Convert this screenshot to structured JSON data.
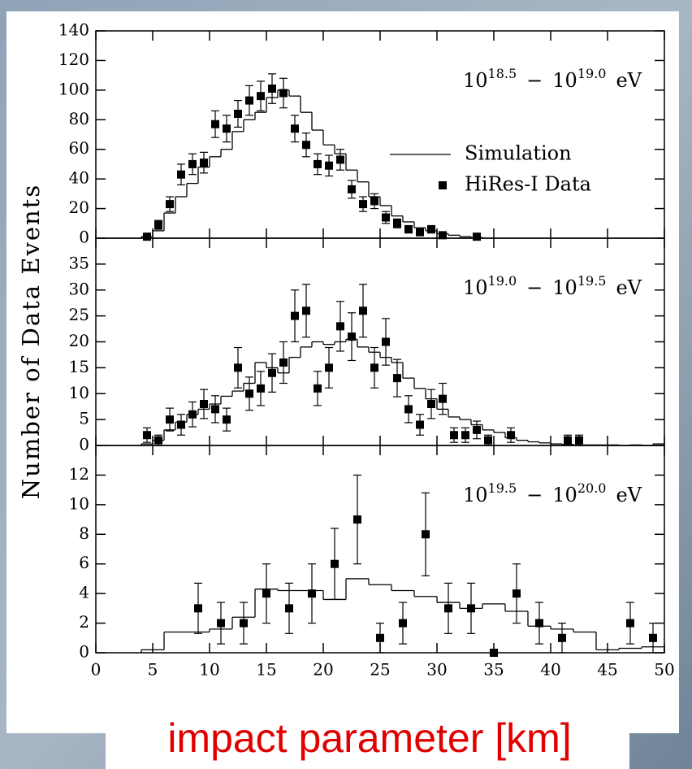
{
  "y_label": "Number of Data Events",
  "x_label": "impact parameter [km]",
  "chart_data": [
    {
      "type": "histogram",
      "annotation": {
        "base": "10",
        "exp": "18.5",
        "sep": "−",
        "base2": "10",
        "exp2": "19.0",
        "unit": "eV"
      },
      "xlim": [
        0,
        50
      ],
      "ylim": [
        0,
        140
      ],
      "yticks": [
        0,
        20,
        40,
        60,
        80,
        100,
        120,
        140
      ],
      "series": [
        {
          "name": "Simulation",
          "color": "#000000",
          "bins": [
            4,
            5,
            6,
            7,
            8,
            9,
            10,
            11,
            12,
            13,
            14,
            15,
            16,
            17,
            18,
            19,
            20,
            21,
            22,
            23,
            24,
            25,
            26,
            27,
            28,
            29,
            30,
            31,
            32,
            33,
            34
          ],
          "values": [
            1,
            5,
            17,
            28,
            37,
            48,
            55,
            60,
            72,
            80,
            85,
            95,
            100,
            96,
            85,
            73,
            63,
            57,
            46,
            38,
            28,
            22,
            15,
            11,
            7,
            5,
            3,
            2,
            1,
            0.5
          ]
        },
        {
          "name": "HiRes-I Data",
          "color": "#000000",
          "x": [
            4.5,
            5.5,
            6.5,
            7.5,
            8.5,
            9.5,
            10.5,
            11.5,
            12.5,
            13.5,
            14.5,
            15.5,
            16.5,
            17.5,
            18.5,
            19.5,
            20.5,
            21.5,
            22.5,
            23.5,
            24.5,
            25.5,
            26.5,
            27.5,
            28.5,
            29.5,
            30.5,
            33.5
          ],
          "values": [
            1,
            9,
            23,
            43,
            50,
            51,
            77,
            74,
            84,
            93,
            96,
            101,
            98,
            74,
            63,
            50,
            49,
            53,
            33,
            23,
            25,
            14,
            10,
            6,
            4,
            6,
            2,
            1
          ],
          "errors": [
            1,
            3,
            5,
            7,
            7,
            7,
            9,
            9,
            9,
            10,
            10,
            10,
            10,
            9,
            8,
            7,
            7,
            7,
            6,
            5,
            5,
            4,
            3,
            2.5,
            2,
            2.5,
            1.4,
            1
          ]
        }
      ]
    },
    {
      "type": "histogram",
      "annotation": {
        "base": "10",
        "exp": "19.0",
        "sep": "−",
        "base2": "10",
        "exp2": "19.5",
        "unit": "eV"
      },
      "xlim": [
        0,
        50
      ],
      "ylim": [
        0,
        40
      ],
      "yticks": [
        0,
        5,
        10,
        15,
        20,
        25,
        30,
        35
      ],
      "series": [
        {
          "color": "#000000",
          "bins": [
            4,
            5,
            6,
            7,
            8,
            9,
            10,
            11,
            12,
            13,
            14,
            15,
            16,
            17,
            18,
            19,
            20,
            21,
            22,
            23,
            24,
            25,
            26,
            27,
            28,
            29,
            30,
            31,
            32,
            33,
            34,
            35,
            36,
            37,
            38,
            39,
            40,
            41,
            42,
            43,
            44,
            45,
            46,
            47,
            48,
            49,
            50
          ],
          "values": [
            0.3,
            1,
            3,
            4.5,
            6,
            7,
            8,
            9.5,
            10.5,
            12,
            16,
            15,
            14,
            17,
            19,
            20,
            19.5,
            20,
            20.5,
            19,
            18,
            17,
            16,
            13,
            11,
            9,
            7,
            5.5,
            5,
            4,
            3,
            2.5,
            1.5,
            1,
            0.7,
            0.5,
            0.3,
            0.2,
            0.1,
            0.1,
            0.1,
            0.1,
            0,
            0.1,
            0,
            0.3
          ]
        },
        {
          "color": "#000000",
          "x": [
            4.5,
            5.5,
            6.5,
            7.5,
            8.5,
            9.5,
            10.5,
            11.5,
            12.5,
            13.5,
            14.5,
            15.5,
            16.5,
            17.5,
            18.5,
            19.5,
            20.5,
            21.5,
            22.5,
            23.5,
            24.5,
            25.5,
            26.5,
            27.5,
            28.5,
            29.5,
            30.5,
            31.5,
            32.5,
            33.5,
            34.5,
            36.5,
            41.5,
            42.5
          ],
          "values": [
            2,
            1,
            5,
            4,
            6,
            8,
            7,
            5,
            15,
            10,
            11,
            14,
            16,
            25,
            26,
            11,
            15,
            23,
            21,
            26,
            15,
            20,
            13,
            7,
            4,
            8,
            9,
            2,
            2,
            3,
            1,
            2,
            1,
            1
          ],
          "errors": [
            1.4,
            1,
            2.2,
            2,
            2.4,
            2.8,
            2.6,
            2.2,
            3.9,
            3.2,
            3.3,
            3.7,
            4,
            5,
            5.1,
            3.3,
            3.9,
            4.8,
            4.6,
            5.1,
            3.9,
            4.5,
            3.6,
            2.6,
            2,
            2.8,
            3,
            1.4,
            1.4,
            1.7,
            1,
            1.4,
            1,
            1
          ]
        }
      ]
    },
    {
      "type": "histogram",
      "annotation": {
        "base": "10",
        "exp": "19.5",
        "sep": "−",
        "base2": "10",
        "exp2": "20.0",
        "unit": "eV"
      },
      "xlim": [
        0,
        50
      ],
      "xticks": [
        0,
        5,
        10,
        15,
        20,
        25,
        30,
        35,
        40,
        45,
        50
      ],
      "ylim": [
        0,
        14
      ],
      "yticks": [
        0,
        2,
        4,
        6,
        8,
        10,
        12
      ],
      "series": [
        {
          "color": "#000000",
          "bins": [
            4,
            6,
            8,
            10,
            12,
            14,
            16,
            18,
            20,
            22,
            24,
            26,
            28,
            30,
            32,
            34,
            36,
            38,
            40,
            42,
            44,
            46,
            48,
            50
          ],
          "values": [
            0.2,
            1.4,
            1.4,
            1.6,
            2.4,
            4.3,
            4.2,
            4.2,
            3.6,
            5.0,
            4.6,
            4.2,
            3.8,
            3.4,
            3.0,
            3.3,
            2.8,
            1.8,
            1.6,
            1.4,
            0.2,
            0.3,
            0.4
          ]
        },
        {
          "color": "#000000",
          "x": [
            9,
            11,
            13,
            15,
            17,
            19,
            21,
            23,
            25,
            27,
            29,
            31,
            33,
            35,
            37,
            39,
            41,
            47,
            49
          ],
          "values": [
            3,
            2,
            2,
            4,
            3,
            4,
            6,
            9,
            1,
            2,
            8,
            3,
            3,
            0,
            4,
            2,
            1,
            2,
            1
          ],
          "errors": [
            1.7,
            1.4,
            1.4,
            2,
            1.7,
            2,
            2.4,
            3,
            1,
            1.4,
            2.8,
            1.7,
            1.7,
            0,
            2,
            1.4,
            1,
            1.4,
            1
          ]
        }
      ]
    }
  ]
}
